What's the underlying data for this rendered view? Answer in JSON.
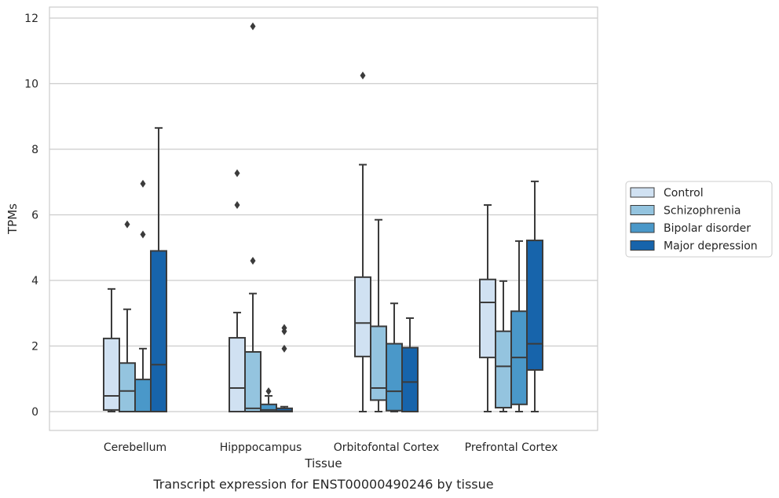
{
  "chart_data": {
    "type": "box",
    "title": "Transcript expression for ENST00000490246 by tissue",
    "xlabel": "Tissue",
    "ylabel": "TPMs",
    "ylim": [
      -0.55,
      12.35
    ],
    "yticks": [
      0,
      2,
      4,
      6,
      8,
      10,
      12
    ],
    "grid": "horizontal",
    "legend_position": "right",
    "categories": [
      "Cerebellum",
      "Hipppocampus",
      "Orbitofontal Cortex",
      "Prefrontal Cortex"
    ],
    "series": [
      {
        "name": "Control",
        "color": "#d0e1f2",
        "boxes": [
          {
            "whisker_low": 0.0,
            "q1": 0.05,
            "median": 0.48,
            "q3": 2.23,
            "whisker_high": 3.74,
            "outliers": []
          },
          {
            "whisker_low": 0.0,
            "q1": 0.0,
            "median": 0.72,
            "q3": 2.25,
            "whisker_high": 3.02,
            "outliers": [
              6.3,
              7.27
            ]
          },
          {
            "whisker_low": 0.0,
            "q1": 1.68,
            "median": 2.7,
            "q3": 4.1,
            "whisker_high": 7.53,
            "outliers": [
              10.25
            ]
          },
          {
            "whisker_low": 0.0,
            "q1": 1.65,
            "median": 3.33,
            "q3": 4.03,
            "whisker_high": 6.3,
            "outliers": []
          }
        ]
      },
      {
        "name": "Schizophrenia",
        "color": "#94c4df",
        "boxes": [
          {
            "whisker_low": 0.0,
            "q1": 0.0,
            "median": 0.63,
            "q3": 1.48,
            "whisker_high": 3.12,
            "outliers": [
              5.71
            ]
          },
          {
            "whisker_low": 0.0,
            "q1": 0.0,
            "median": 0.1,
            "q3": 1.82,
            "whisker_high": 3.6,
            "outliers": [
              4.6,
              11.75
            ]
          },
          {
            "whisker_low": 0.0,
            "q1": 0.35,
            "median": 0.72,
            "q3": 2.6,
            "whisker_high": 5.85,
            "outliers": []
          },
          {
            "whisker_low": 0.0,
            "q1": 0.12,
            "median": 1.38,
            "q3": 2.45,
            "whisker_high": 3.98,
            "outliers": []
          }
        ]
      },
      {
        "name": "Bipolar disorder",
        "color": "#4a98c9",
        "boxes": [
          {
            "whisker_low": 0.0,
            "q1": 0.0,
            "median": 0.0,
            "q3": 0.98,
            "whisker_high": 1.92,
            "outliers": [
              5.4,
              6.95
            ]
          },
          {
            "whisker_low": 0.0,
            "q1": 0.0,
            "median": 0.05,
            "q3": 0.22,
            "whisker_high": 0.48,
            "outliers": [
              0.62
            ]
          },
          {
            "whisker_low": 0.0,
            "q1": 0.03,
            "median": 0.62,
            "q3": 2.07,
            "whisker_high": 3.3,
            "outliers": []
          },
          {
            "whisker_low": 0.0,
            "q1": 0.22,
            "median": 1.65,
            "q3": 3.06,
            "whisker_high": 5.2,
            "outliers": []
          }
        ]
      },
      {
        "name": "Major depression",
        "color": "#1764ab",
        "boxes": [
          {
            "whisker_low": 0.0,
            "q1": 0.0,
            "median": 1.43,
            "q3": 4.9,
            "whisker_high": 8.65,
            "outliers": []
          },
          {
            "whisker_low": 0.0,
            "q1": 0.0,
            "median": 0.02,
            "q3": 0.1,
            "whisker_high": 0.15,
            "outliers": [
              1.92,
              2.45,
              2.55
            ]
          },
          {
            "whisker_low": 0.0,
            "q1": 0.0,
            "median": 0.9,
            "q3": 1.95,
            "whisker_high": 2.85,
            "outliers": []
          },
          {
            "whisker_low": 0.0,
            "q1": 1.27,
            "median": 2.07,
            "q3": 5.22,
            "whisker_high": 7.02,
            "outliers": []
          }
        ]
      }
    ]
  }
}
